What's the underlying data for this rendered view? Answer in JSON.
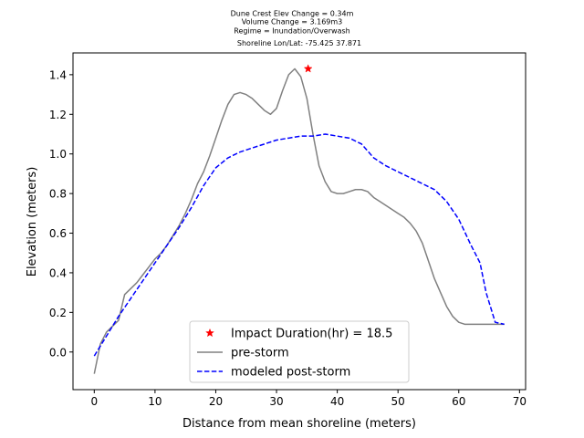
{
  "chart_data": {
    "type": "line",
    "title_lines": [
      "Dune Crest Elev Change = 0.34m",
      "Volume Change = 3.169m3",
      "Regime = Inundation/Overwash",
      "Shoreline Lon/Lat: -75.425 37.871"
    ],
    "xlabel": "Distance from mean shoreline (meters)",
    "ylabel": "Elevation (meters)",
    "xlim": [
      -3.5,
      71
    ],
    "ylim": [
      -0.19,
      1.51
    ],
    "xticks": [
      0,
      10,
      20,
      30,
      40,
      50,
      60,
      70
    ],
    "yticks": [
      0.0,
      0.2,
      0.4,
      0.6,
      0.8,
      1.0,
      1.2,
      1.4
    ],
    "xtick_labels": [
      "0",
      "10",
      "20",
      "30",
      "40",
      "50",
      "60",
      "70"
    ],
    "ytick_labels": [
      "0.0",
      "0.2",
      "0.4",
      "0.6",
      "0.8",
      "1.0",
      "1.2",
      "1.4"
    ],
    "grid": false,
    "legend_position": "lower-center",
    "series": [
      {
        "name": "pre-storm",
        "color": "#808080",
        "style": "solid",
        "x": [
          0,
          1,
          2,
          3,
          4,
          5,
          6,
          7,
          8,
          9,
          10,
          11,
          12,
          13,
          14,
          15,
          16,
          17,
          18,
          19,
          20,
          21,
          22,
          23,
          24,
          25,
          26,
          27,
          28,
          29,
          30,
          31,
          32,
          33,
          34,
          35,
          36,
          37,
          38,
          39,
          40,
          41,
          42,
          43,
          44,
          45,
          46,
          47,
          48,
          49,
          50,
          51,
          52,
          53,
          54,
          55,
          56,
          57,
          58,
          59,
          60,
          61,
          62,
          63,
          64,
          65,
          66,
          67,
          67.5
        ],
        "y": [
          -0.11,
          0.04,
          0.1,
          0.13,
          0.16,
          0.29,
          0.32,
          0.35,
          0.39,
          0.43,
          0.47,
          0.5,
          0.54,
          0.59,
          0.64,
          0.7,
          0.77,
          0.85,
          0.91,
          0.99,
          1.08,
          1.17,
          1.25,
          1.3,
          1.31,
          1.3,
          1.28,
          1.25,
          1.22,
          1.2,
          1.23,
          1.32,
          1.4,
          1.43,
          1.39,
          1.28,
          1.1,
          0.94,
          0.86,
          0.81,
          0.8,
          0.8,
          0.81,
          0.82,
          0.82,
          0.81,
          0.78,
          0.76,
          0.74,
          0.72,
          0.7,
          0.68,
          0.65,
          0.61,
          0.55,
          0.46,
          0.37,
          0.3,
          0.23,
          0.18,
          0.15,
          0.14,
          0.14,
          0.14,
          0.14,
          0.14,
          0.14,
          0.14,
          0.14
        ]
      },
      {
        "name": "modeled post-storm",
        "color": "#0000ff",
        "style": "dashed",
        "x": [
          0,
          2,
          4,
          6,
          8,
          10,
          12,
          14,
          16,
          18,
          20,
          22,
          24,
          26,
          28,
          30,
          32,
          34,
          36,
          38,
          40,
          42,
          44,
          46,
          48,
          50,
          52,
          54,
          56,
          58,
          60,
          62,
          63.5,
          64.5,
          66,
          67.5
        ],
        "y": [
          -0.02,
          0.08,
          0.18,
          0.27,
          0.36,
          0.45,
          0.54,
          0.63,
          0.73,
          0.84,
          0.93,
          0.98,
          1.01,
          1.03,
          1.05,
          1.07,
          1.08,
          1.09,
          1.09,
          1.1,
          1.09,
          1.08,
          1.05,
          0.98,
          0.94,
          0.91,
          0.88,
          0.85,
          0.82,
          0.76,
          0.67,
          0.54,
          0.45,
          0.3,
          0.15,
          0.14
        ]
      }
    ],
    "marker": {
      "name": "Impact Duration(hr) = 18.5",
      "color": "#ff0000",
      "symbol": "star",
      "x": 35.2,
      "y": 1.43
    },
    "legend": [
      {
        "kind": "marker",
        "label": "Impact Duration(hr) = 18.5",
        "color": "#ff0000"
      },
      {
        "kind": "solid",
        "label": "pre-storm",
        "color": "#808080"
      },
      {
        "kind": "dashed",
        "label": "modeled post-storm",
        "color": "#0000ff"
      }
    ]
  }
}
